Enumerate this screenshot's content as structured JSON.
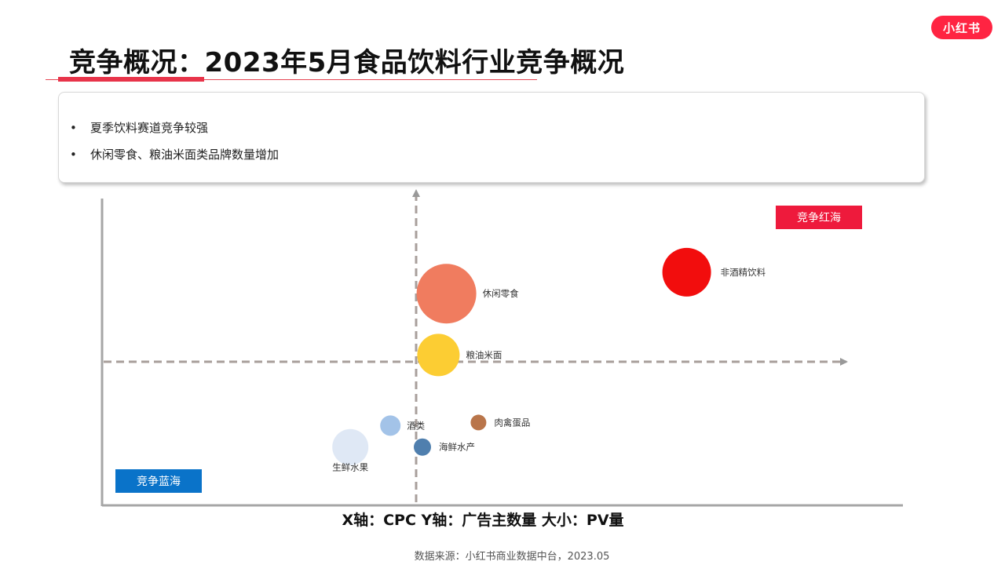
{
  "brand": {
    "logo_text": "小红书",
    "color": "#ff2442"
  },
  "title": "竞争概况：2023年5月食品饮料行业竞争概况",
  "summary": {
    "bullet": "•",
    "items": [
      "夏季饮料赛道竞争较强",
      "休闲零食、粮油米面类品牌数量增加"
    ]
  },
  "quadrants": {
    "top_right": {
      "label": "竞争红海",
      "color": "#ee1a3c"
    },
    "bottom_left": {
      "label": "竞争蓝海",
      "color": "#0a73c9"
    }
  },
  "axis_caption": "X轴：CPC  Y轴：广告主数量  大小：PV量",
  "source": "数据来源：小红书商业数据中台，2023.05",
  "chart_data": {
    "type": "scatter",
    "bubble": true,
    "title": "",
    "xlabel": "CPC",
    "ylabel": "广告主数量",
    "size_label": "PV量",
    "grid": false,
    "x_range": [
      0,
      100
    ],
    "y_range": [
      0,
      100
    ],
    "series": [
      {
        "points": [
          {
            "label": "非酒精饮料",
            "x": 73,
            "y": 76,
            "size": 31,
            "color": "#f20d0d"
          },
          {
            "label": "休闲零食",
            "x": 43,
            "y": 69,
            "size": 38,
            "color": "#f07c5f"
          },
          {
            "label": "粮油米面",
            "x": 42,
            "y": 49,
            "size": 27,
            "color": "#fccd33"
          },
          {
            "label": "肉禽蛋品",
            "x": 47,
            "y": 27,
            "size": 10,
            "color": "#b9754a"
          },
          {
            "label": "酒类",
            "x": 36,
            "y": 26,
            "size": 13,
            "color": "#a3c3e8"
          },
          {
            "label": "海鲜水产",
            "x": 40,
            "y": 19,
            "size": 11,
            "color": "#4f7fae"
          },
          {
            "label": "生鲜水果",
            "x": 31,
            "y": 19,
            "size": 23,
            "color": "#dfe8f5"
          }
        ]
      }
    ]
  }
}
